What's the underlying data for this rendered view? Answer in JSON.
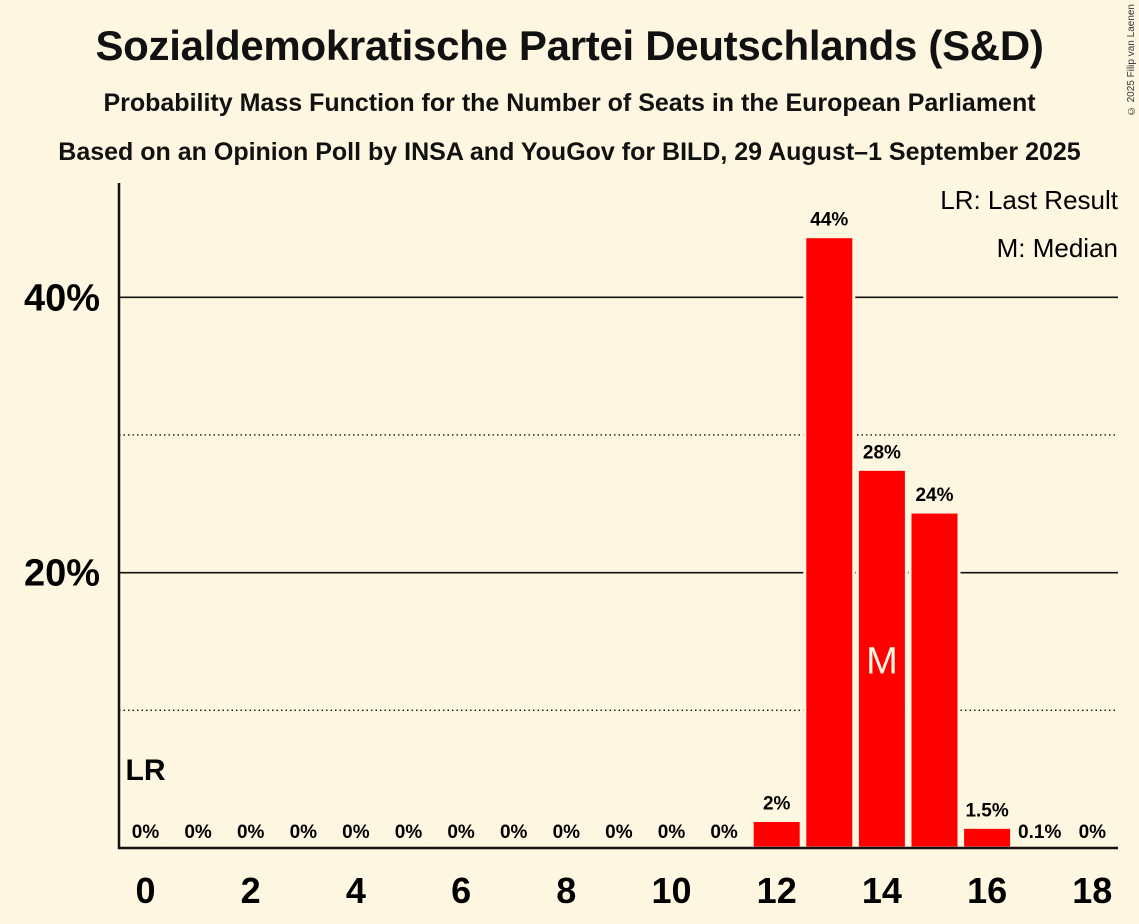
{
  "header": {
    "title": "Sozialdemokratische Partei Deutschlands (S&D)",
    "subtitle": "Probability Mass Function for the Number of Seats in the European Parliament",
    "subtitle2": "Based on an Opinion Poll by INSA and YouGov for BILD, 29 August–1 September 2025",
    "copyright": "© 2025 Filip van Laenen"
  },
  "legend": {
    "last_result": "LR: Last Result",
    "median": "M: Median"
  },
  "colors": {
    "background": "#fdf6e1",
    "bar": "#ff0000",
    "text": "#111111"
  },
  "chart_data": {
    "type": "bar",
    "title": "Sozialdemokratische Partei Deutschlands (S&D)",
    "xlabel": "",
    "ylabel": "",
    "categories": [
      0,
      1,
      2,
      3,
      4,
      5,
      6,
      7,
      8,
      9,
      10,
      11,
      12,
      13,
      14,
      15,
      16,
      17,
      18
    ],
    "values": [
      0,
      0,
      0,
      0,
      0,
      0,
      0,
      0,
      0,
      0,
      0,
      0,
      2,
      44.4,
      27.5,
      24.4,
      1.5,
      0.1,
      0
    ],
    "value_labels": [
      "0%",
      "0%",
      "0%",
      "0%",
      "0%",
      "0%",
      "0%",
      "0%",
      "0%",
      "0%",
      "0%",
      "0%",
      "2%",
      "44%",
      "28%",
      "24%",
      "1.5%",
      "0.1%",
      "0%"
    ],
    "x_tick_labels": [
      "0",
      "2",
      "4",
      "6",
      "8",
      "10",
      "12",
      "14",
      "16",
      "18"
    ],
    "x_ticks": [
      0,
      2,
      4,
      6,
      8,
      10,
      12,
      14,
      16,
      18
    ],
    "y_tick_labels": [
      "20%",
      "40%"
    ],
    "y_ticks": [
      20,
      40
    ],
    "y_dotted_lines": [
      10,
      30
    ],
    "ylim": [
      0,
      48.3
    ],
    "last_result_seat": 0,
    "last_result_label": "LR",
    "median_seat": 14,
    "median_label": "M",
    "legend_position": "top-right",
    "grid": true
  }
}
